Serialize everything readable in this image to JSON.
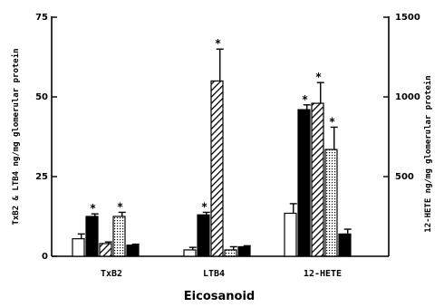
{
  "chart_data": {
    "type": "bar",
    "categories": [
      "TxB2",
      "LTB4",
      "12-HETE"
    ],
    "xlabel": "Eicosanoid",
    "ylabel_left": "TxB2 & LTB4 ng/mg glomerular protein",
    "ylabel_right": "12-HETE ng/mg glomerular protein",
    "ylim_left": [
      0,
      75
    ],
    "ylim_right": [
      0,
      1500
    ],
    "yticks_left": [
      "0",
      "25",
      "50",
      "75"
    ],
    "yticks_right": [
      "500",
      "1000",
      "1500"
    ],
    "grid": false,
    "legend": "none",
    "patterns": [
      "white",
      "black",
      "diagonal-hatch",
      "dotted",
      "black"
    ],
    "series": [
      {
        "axis": "left",
        "values": [
          5.5,
          2,
          0
        ],
        "errors": [
          1.5,
          0.8,
          0
        ]
      },
      {
        "axis": "left",
        "values": [
          12.5,
          13,
          0
        ],
        "errors": [
          0.8,
          0.8,
          0
        ]
      },
      {
        "axis": "left",
        "values": [
          4,
          55,
          0
        ],
        "errors": [
          0.5,
          10,
          0
        ]
      },
      {
        "axis": "left",
        "values": [
          12.5,
          2,
          0
        ],
        "errors": [
          1.3,
          1,
          0
        ]
      },
      {
        "axis": "left",
        "values": [
          3.5,
          3,
          0
        ],
        "errors": [
          0.3,
          0.3,
          0
        ]
      }
    ],
    "series_12hete": [
      {
        "axis": "right",
        "value": 270,
        "error": 60
      },
      {
        "axis": "right",
        "value": 920,
        "error": 30
      },
      {
        "axis": "right",
        "value": 960,
        "error": 130
      },
      {
        "axis": "right",
        "value": 670,
        "error": 140
      },
      {
        "axis": "right",
        "value": 140,
        "error": 30
      }
    ],
    "significant": [
      [
        false,
        true,
        false,
        true,
        false
      ],
      [
        false,
        true,
        true,
        false,
        false
      ],
      [
        false,
        true,
        true,
        true,
        false
      ]
    ],
    "annotation_symbol": "*"
  }
}
